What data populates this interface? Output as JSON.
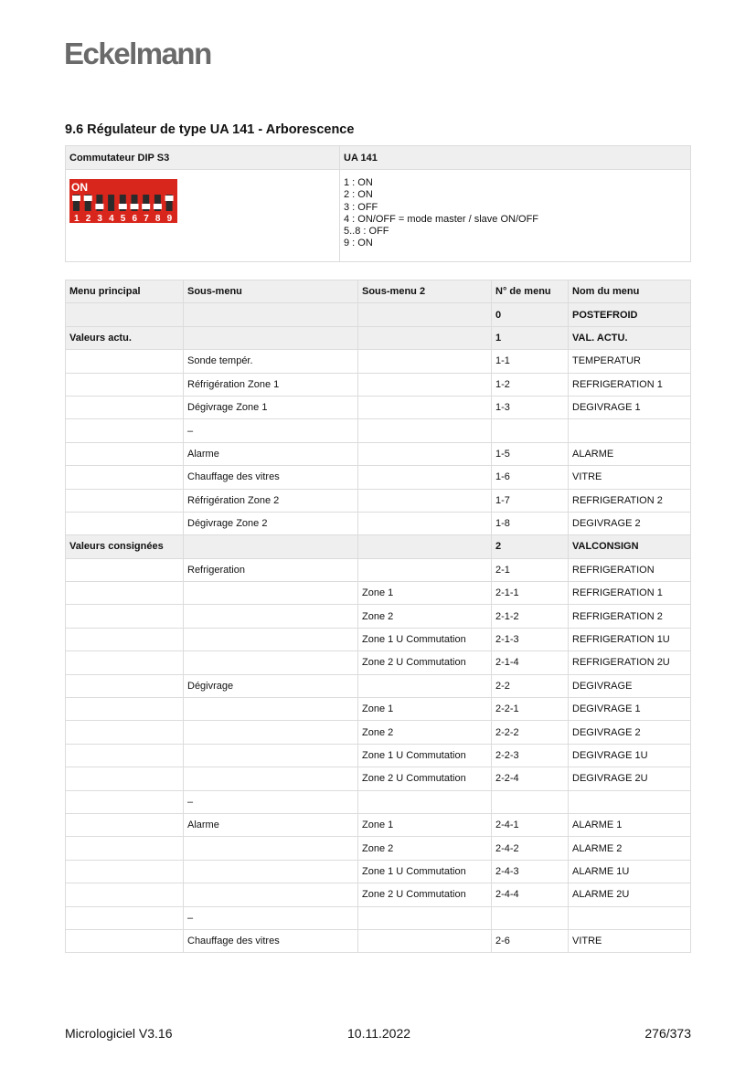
{
  "logo": "Eckelmann",
  "heading": "9.6  Régulateur de type UA 141 - Arborescence",
  "dip": {
    "col1": "Commutateur DIP S3",
    "col2": "UA 141",
    "switch_label": "ON",
    "switch_color": "#d9261c",
    "switch_states": [
      "on",
      "on",
      "off",
      "mid",
      "off",
      "off",
      "off",
      "off",
      "on"
    ],
    "lines": [
      "1 : ON",
      "2 : ON",
      "3 : OFF",
      "4 : ON/OFF = mode master / slave ON/OFF",
      "5..8 : OFF",
      "9 : ON"
    ]
  },
  "menu": {
    "headers": [
      "Menu principal",
      "Sous-menu",
      "Sous-menu 2",
      "N° de menu",
      "Nom du menu"
    ],
    "rows": [
      {
        "g": 1,
        "c": [
          "",
          "",
          "",
          "0",
          "POSTEFROID"
        ]
      },
      {
        "g": 1,
        "c": [
          "Valeurs actu.",
          "",
          "",
          "1",
          "VAL. ACTU."
        ]
      },
      {
        "c": [
          "",
          "Sonde tempér.",
          "",
          "1-1",
          "TEMPERATUR"
        ]
      },
      {
        "c": [
          "",
          "Réfrigération Zone 1",
          "",
          "1-2",
          "REFRIGERATION 1"
        ]
      },
      {
        "c": [
          "",
          "Dégivrage Zone 1",
          "",
          "1-3",
          "DEGIVRAGE 1"
        ]
      },
      {
        "c": [
          "",
          "–",
          "",
          "",
          ""
        ]
      },
      {
        "c": [
          "",
          "Alarme",
          "",
          "1-5",
          "ALARME"
        ]
      },
      {
        "c": [
          "",
          "Chauffage des vitres",
          "",
          "1-6",
          "VITRE"
        ]
      },
      {
        "c": [
          "",
          "Réfrigération Zone 2",
          "",
          "1-7",
          "REFRIGERATION 2"
        ]
      },
      {
        "c": [
          "",
          "Dégivrage Zone 2",
          "",
          "1-8",
          "DEGIVRAGE 2"
        ]
      },
      {
        "g": 1,
        "c": [
          "Valeurs consignées",
          "",
          "",
          "2",
          "VALCONSIGN"
        ]
      },
      {
        "c": [
          "",
          "Refrigeration",
          "",
          "2-1",
          "REFRIGERATION"
        ]
      },
      {
        "c": [
          "",
          "",
          "Zone 1",
          "2-1-1",
          "REFRIGERATION 1"
        ]
      },
      {
        "c": [
          "",
          "",
          "Zone 2",
          "2-1-2",
          "REFRIGERATION 2"
        ]
      },
      {
        "c": [
          "",
          "",
          "Zone 1 U Commutation",
          "2-1-3",
          "REFRIGERATION 1U"
        ]
      },
      {
        "c": [
          "",
          "",
          "Zone 2 U Commutation",
          "2-1-4",
          "REFRIGERATION 2U"
        ]
      },
      {
        "c": [
          "",
          "Dégivrage",
          "",
          "2-2",
          "DEGIVRAGE"
        ]
      },
      {
        "c": [
          "",
          "",
          "Zone 1",
          "2-2-1",
          "DEGIVRAGE 1"
        ]
      },
      {
        "c": [
          "",
          "",
          "Zone 2",
          "2-2-2",
          "DEGIVRAGE 2"
        ]
      },
      {
        "c": [
          "",
          "",
          "Zone 1 U Commutation",
          "2-2-3",
          "DEGIVRAGE 1U"
        ]
      },
      {
        "c": [
          "",
          "",
          "Zone 2 U Commutation",
          "2-2-4",
          "DEGIVRAGE 2U"
        ]
      },
      {
        "c": [
          "",
          "–",
          "",
          "",
          ""
        ]
      },
      {
        "c": [
          "",
          "Alarme",
          "Zone 1",
          "2-4-1",
          "ALARME 1"
        ]
      },
      {
        "c": [
          "",
          "",
          "Zone 2",
          "2-4-2",
          "ALARME 2"
        ]
      },
      {
        "c": [
          "",
          "",
          "Zone 1 U Commutation",
          "2-4-3",
          "ALARME 1U"
        ]
      },
      {
        "c": [
          "",
          "",
          "Zone 2 U Commutation",
          "2-4-4",
          "ALARME 2U"
        ]
      },
      {
        "c": [
          "",
          "–",
          "",
          "",
          ""
        ]
      },
      {
        "c": [
          "",
          "Chauffage des vitres",
          "",
          "2-6",
          "VITRE"
        ]
      }
    ]
  },
  "footer": {
    "left": "Micrologiciel V3.16",
    "center": "10.11.2022",
    "right": "276/373"
  }
}
